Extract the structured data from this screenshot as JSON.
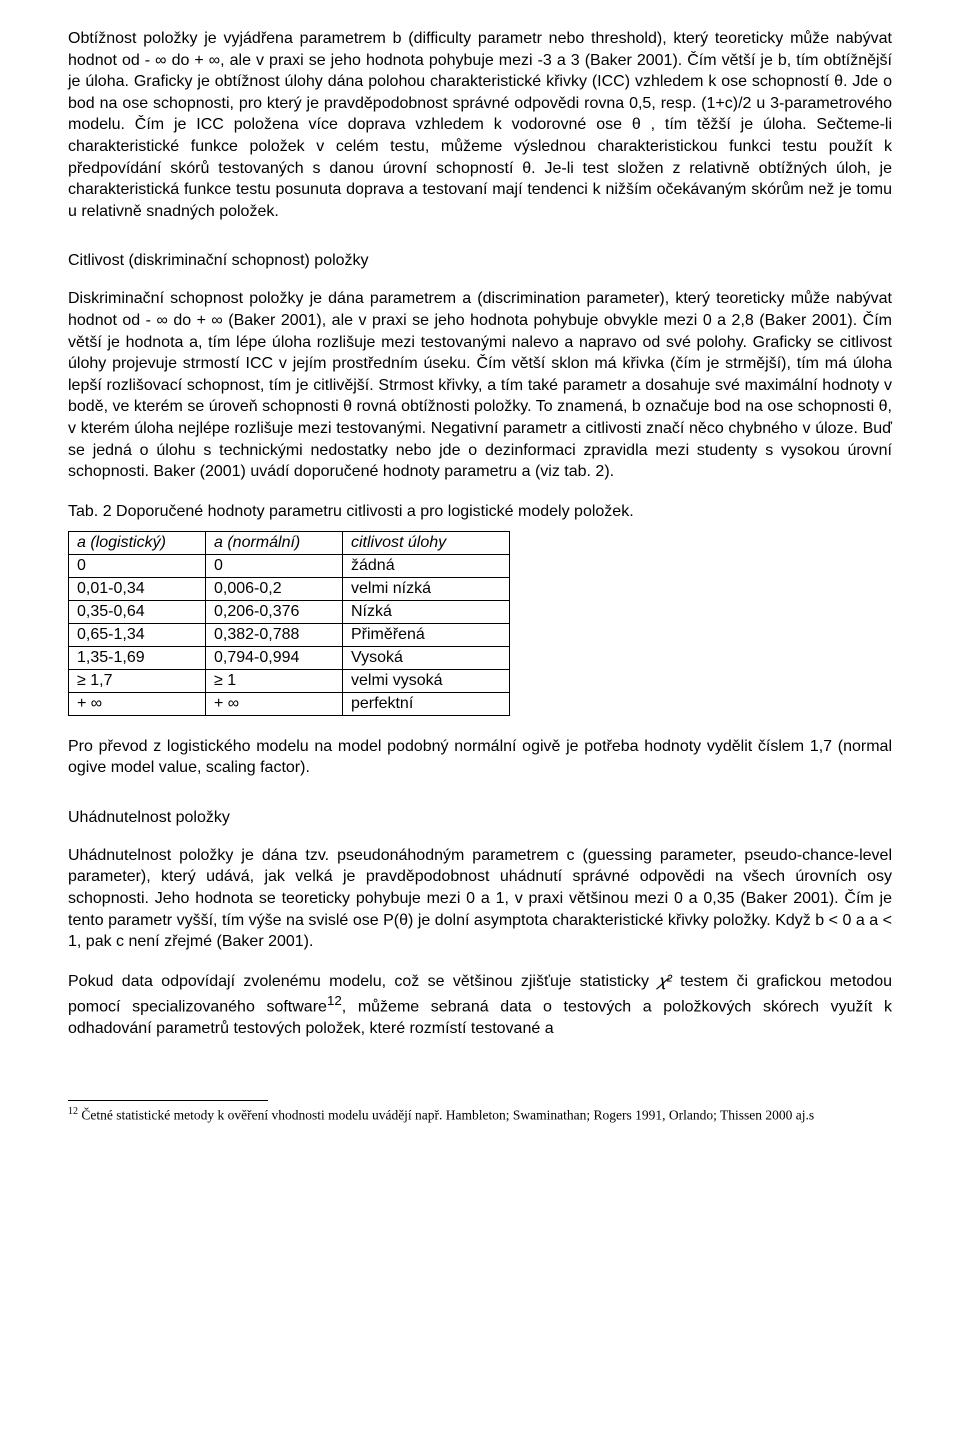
{
  "paragraphs": {
    "p1": "Obtížnost položky je vyjádřena parametrem b (difficulty parametr nebo threshold), který teoreticky může nabývat hodnot od - ∞ do + ∞, ale v praxi se jeho hodnota pohybuje mezi -3 a 3 (Baker 2001). Čím větší je b,  tím obtížnější je úloha. Graficky je obtížnost úlohy dána polohou charakteristické křivky (ICC) vzhledem k ose schopností θ. Jde o bod na ose schopnosti, pro který je pravděpodobnost správné odpovědi rovna 0,5, resp. (1+c)/2 u 3-parametrového modelu. Čím je ICC položena více doprava vzhledem k vodorovné ose θ , tím těžší je úloha. Sečteme-li charakteristické funkce položek v celém testu, můžeme výslednou charakteristickou funkci testu použít k předpovídání skórů testovaných s danou úrovní schopností θ. Je-li test složen z relativně obtížných úloh, je charakteristická funkce testu posunuta doprava a testovaní mají tendenci k nižším očekávaným skórům než je tomu u relativně snadných položek.",
    "p2": "Diskriminační schopnost položky je dána parametrem a (discrimination parameter), který teoreticky může nabývat hodnot od - ∞ do + ∞ (Baker 2001), ale v praxi se jeho hodnota pohybuje obvykle mezi 0 a 2,8 (Baker 2001). Čím větší je hodnota a, tím lépe úloha rozlišuje mezi testovanými nalevo a napravo od své polohy. Graficky se citlivost úlohy projevuje strmostí ICC v jejím prostředním úseku. Čím větší sklon má křivka (čím je strmější), tím má úloha lepší rozlišovací schopnost, tím je citlivější. Strmost křivky, a tím také parametr a dosahuje své maximální hodnoty v bodě, ve kterém se úroveň schopnosti θ rovná obtížnosti položky. To znamená, b označuje bod na ose schopnosti θ, v kterém úloha nejlépe rozlišuje mezi testovanými. Negativní parametr a citlivosti značí něco chybného v úloze. Buď se jedná o úlohu s technickými nedostatky nebo jde o dezinformaci zpravidla mezi studenty s vysokou úrovní schopnosti. Baker (2001) uvádí doporučené hodnoty parametru a (viz tab. 2).",
    "p3": "Pro převod z logistického modelu na model podobný normální ogivě je potřeba hodnoty vydělit číslem 1,7 (normal ogive model value, scaling factor).",
    "p4": "Uhádnutelnost položky je dána tzv. pseudonáhodným parametrem c (guessing parameter, pseudo-chance-level parameter), který udává, jak velká je pravděpodobnost  uhádnutí správné odpovědi na všech úrovních osy schopnosti. Jeho hodnota se teoreticky pohybuje mezi 0 a 1, v praxi většinou mezi 0 a 0,35 (Baker 2001). Čím je tento parametr vyšší, tím výše na svislé ose P(θ) je dolní asymptota charakteristické křivky položky. Když b < 0 a a < 1, pak c není zřejmé (Baker 2001).",
    "p5a": "Pokud data odpovídají zvolenému modelu, což se většinou zjišťuje statisticky ",
    "p5b": " testem či grafickou metodou pomocí specializovaného software",
    "p5c": ", můžeme sebraná data o testových a položkových skórech využít k odhadování parametrů testových položek, které rozmístí testované a"
  },
  "headings": {
    "h1": "Citlivost (diskriminační schopnost) položky",
    "h2": "Uhádnutelnost položky"
  },
  "tableCaption": "Tab. 2 Doporučené hodnoty parametru citlivosti a pro logistické modely položek.",
  "table": {
    "header": [
      "a (logistický)",
      "a (normální)",
      "citlivost úlohy"
    ],
    "rows": [
      [
        "0",
        "0",
        "žádná"
      ],
      [
        "0,01-0,34",
        "0,006-0,2",
        "velmi nízká"
      ],
      [
        "0,35-0,64",
        "0,206-0,376",
        "Nízká"
      ],
      [
        "0,65-1,34",
        "0,382-0,788",
        "Přiměřená"
      ],
      [
        "1,35-1,69",
        "0,794-0,994",
        "Vysoká"
      ],
      [
        "≥ 1,7",
        "≥ 1",
        "velmi vysoká"
      ],
      [
        "+ ∞",
        "+ ∞",
        "perfektní"
      ]
    ]
  },
  "chiSquared": "𝜒²",
  "footnoteSup": "12",
  "footnote": "Četné statistické metody k ověření vhodnosti modelu uvádějí např. Hambleton; Swaminathan; Rogers 1991, Orlando; Thissen 2000 aj.s",
  "colors": {
    "text": "#000000",
    "background": "#ffffff",
    "border": "#000000"
  },
  "fonts": {
    "body_family": "Arial",
    "body_size_pt": 12,
    "footnote_family": "Times New Roman",
    "footnote_size_pt": 10
  }
}
